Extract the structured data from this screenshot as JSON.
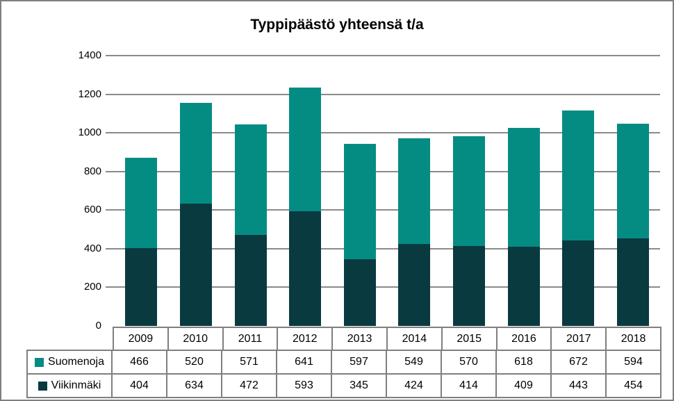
{
  "chart_data": {
    "type": "bar",
    "stacked": true,
    "title": "Typpipäästö yhteensä t/a",
    "categories": [
      "2009",
      "2010",
      "2011",
      "2012",
      "2013",
      "2014",
      "2015",
      "2016",
      "2017",
      "2018"
    ],
    "series": [
      {
        "name": "Suomenoja",
        "color": "#048c83",
        "values": [
          466,
          520,
          571,
          641,
          597,
          549,
          570,
          618,
          672,
          594
        ]
      },
      {
        "name": "Viikinmäki",
        "color": "#093a40",
        "values": [
          404,
          634,
          472,
          593,
          345,
          424,
          414,
          409,
          443,
          454
        ]
      }
    ],
    "stack_bottom_series": "Viikinmäki",
    "ylim": [
      0,
      1400
    ],
    "yticks": [
      0,
      200,
      400,
      600,
      800,
      1000,
      1200,
      1400
    ],
    "xlabel": "",
    "ylabel": "",
    "grid": true,
    "legend_position": "table-left",
    "data_table_shown": true
  },
  "colors": {
    "grid": "#8a8a8a",
    "frame_border": "#7f7f7f",
    "table_border": "#7f7f7f",
    "background": "#ffffff",
    "text": "#000000"
  }
}
